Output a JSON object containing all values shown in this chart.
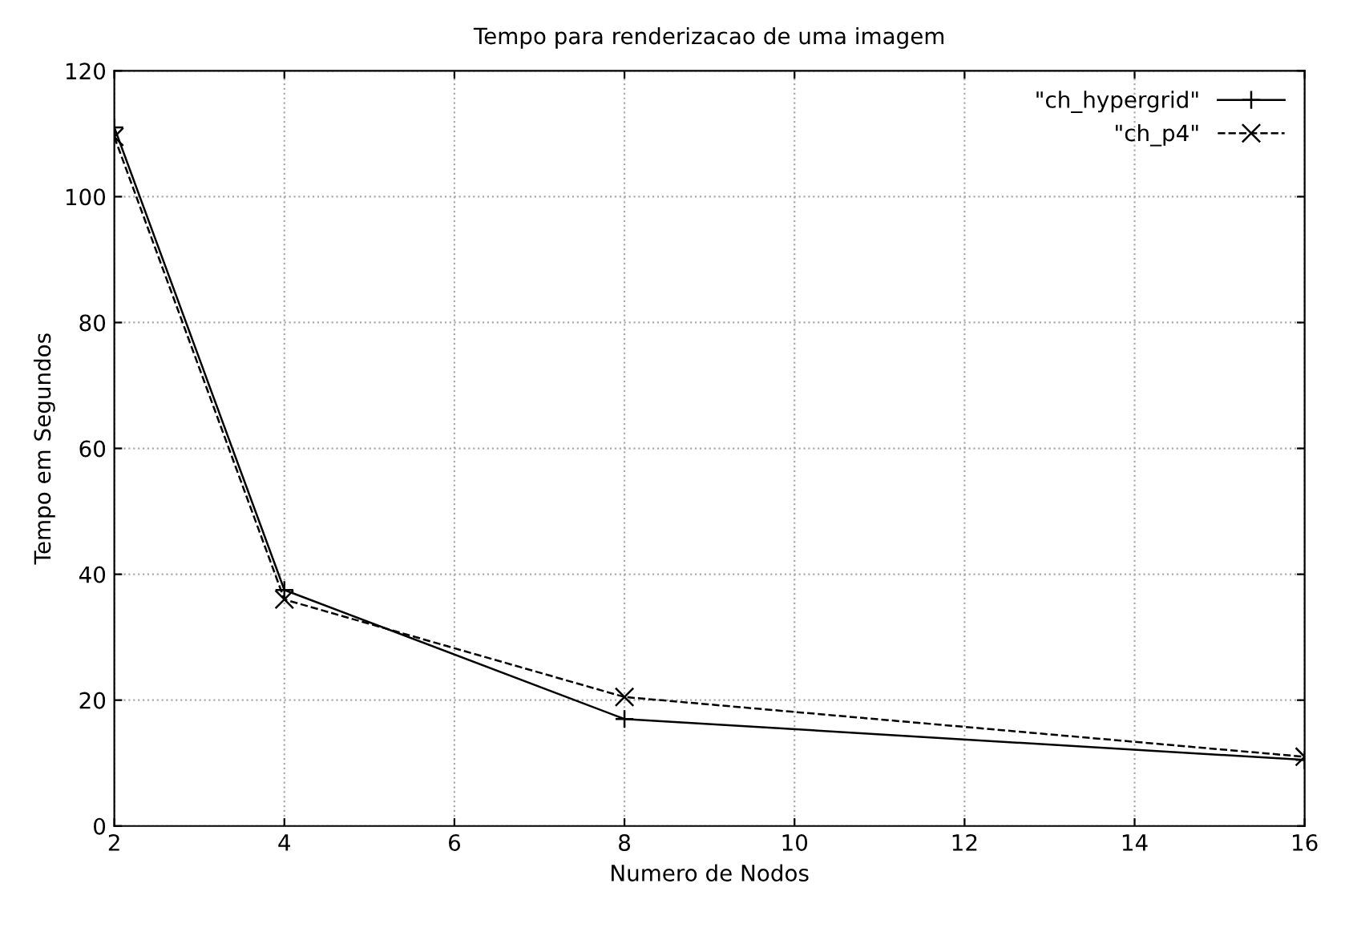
{
  "chart_data": {
    "type": "line",
    "title": "Tempo para renderizacao de uma imagem",
    "xlabel": "Numero de Nodos",
    "ylabel": "Tempo em Segundos",
    "x": [
      2,
      4,
      8,
      16
    ],
    "series": [
      {
        "name": "\"ch_hypergrid\"",
        "color": "#000000",
        "values": [
          111,
          37.5,
          17,
          10.5
        ],
        "marker": "plus",
        "line_style": "solid"
      },
      {
        "name": "\"ch_p4\"",
        "color": "#000000",
        "values": [
          109.5,
          36,
          20.5,
          11
        ],
        "marker": "cross",
        "line_style": "dashed"
      }
    ],
    "xlim": [
      2,
      16
    ],
    "xticks": [
      2,
      4,
      6,
      8,
      10,
      12,
      14,
      16
    ],
    "ylim": [
      0,
      120
    ],
    "yticks": [
      0,
      20,
      40,
      60,
      80,
      100,
      120
    ],
    "grid": true,
    "legend": "top right"
  }
}
